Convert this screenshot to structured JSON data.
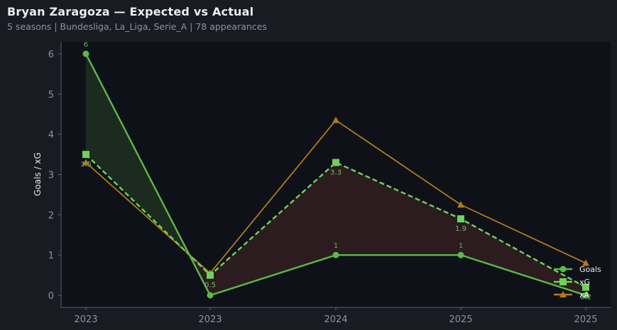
{
  "header": {
    "title": "Bryan Zaragoza — Expected vs Actual",
    "subtitle": "5 seasons | Bundesliga, La_Liga, Serie_A | 78 appearances"
  },
  "colors": {
    "background": "#181b22",
    "plot_background": "#0e1118",
    "goals": "#5ab94a",
    "xg": "#6dd35a",
    "xa": "#b07a1e",
    "overperform_fill": "#1c2b1f",
    "underperform_fill": "#2c1c1f",
    "axis": "#5a5f6a",
    "tick_text": "#8d929c"
  },
  "chart_data": {
    "type": "line",
    "title": "Bryan Zaragoza — Expected vs Actual",
    "subtitle": "5 seasons | Bundesliga, La_Liga, Serie_A | 78 appearances",
    "xlabel": "",
    "ylabel": "Goals / xG",
    "categories": [
      "2023",
      "2023",
      "2024",
      "2025",
      "2025"
    ],
    "ylim": [
      -0.3,
      6.3
    ],
    "yticks": [
      0,
      1,
      2,
      3,
      4,
      5,
      6
    ],
    "grid": false,
    "legend_position": "lower right",
    "series": [
      {
        "name": "Goals",
        "values": [
          6,
          0,
          1,
          1,
          0
        ],
        "marker": "circle",
        "style": "solid",
        "labels": [
          "6",
          "0",
          "1",
          "1",
          "0"
        ]
      },
      {
        "name": "xG",
        "values": [
          3.5,
          0.5,
          3.3,
          1.9,
          0.2
        ],
        "marker": "square",
        "style": "dashed",
        "labels": [
          "3.5",
          "0.5",
          "3.3",
          "1.9",
          "0.2"
        ]
      },
      {
        "name": "xA",
        "values": [
          3.3,
          0.55,
          4.35,
          2.25,
          0.8
        ],
        "marker": "triangle",
        "style": "solid"
      }
    ],
    "fill_between": {
      "series_a": "Goals",
      "series_b": "xG",
      "above_color": "green",
      "below_color": "red"
    }
  }
}
